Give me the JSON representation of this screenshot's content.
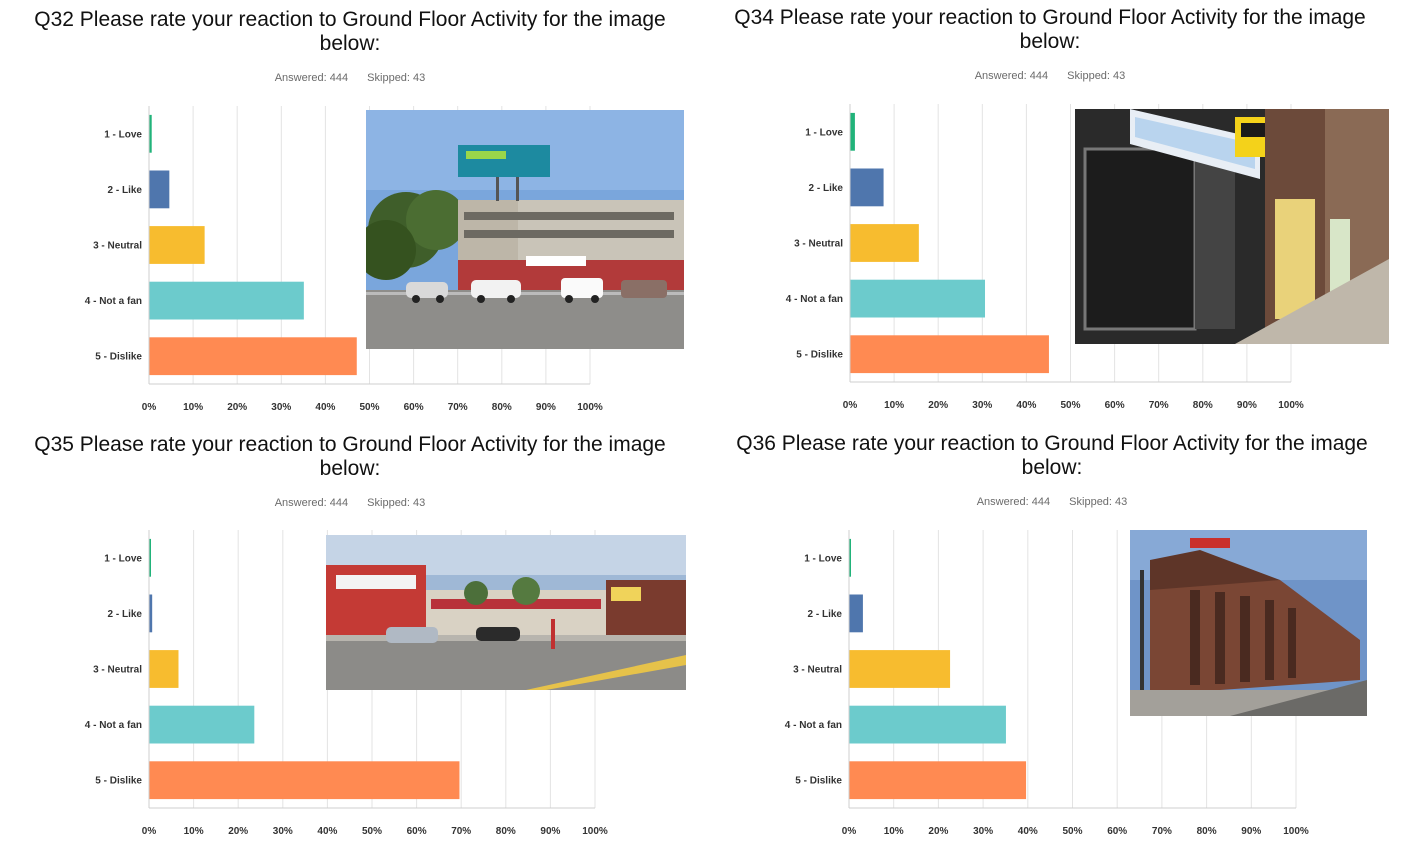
{
  "colors": [
    "#21b37a",
    "#4f76ad",
    "#f7bc2f",
    "#6ccbcc",
    "#ff8a52"
  ],
  "panels": [
    {
      "title_line1": "Q32 Please rate your reaction to Ground Floor Activity for the image",
      "title_line2": "below:",
      "answered": "Answered: 444",
      "skipped": "Skipped: 43",
      "photo_icon": "street-photo-corner-building-billboard"
    },
    {
      "title_line1": "Q34 Please rate your reaction to Ground Floor Activity for the image",
      "title_line2": "below:",
      "answered": "Answered: 444",
      "skipped": "Skipped: 43",
      "photo_icon": "street-photo-action-printing-storefront"
    },
    {
      "title_line1": "Q35 Please rate your reaction to Ground Floor Activity for the image",
      "title_line2": "below:",
      "answered": "Answered: 444",
      "skipped": "Skipped: 43",
      "photo_icon": "street-photo-strip-mall-parking"
    },
    {
      "title_line1": "Q36 Please rate your reaction to Ground Floor Activity for the image",
      "title_line2": "below:",
      "answered": "Answered: 444",
      "skipped": "Skipped: 43",
      "photo_icon": "street-photo-brick-corner-building"
    }
  ],
  "chart_data": [
    {
      "type": "bar",
      "orientation": "horizontal",
      "title": "Q32 Please rate your reaction to Ground Floor Activity for the image below:",
      "categories": [
        "1 - Love",
        "2 - Like",
        "3 - Neutral",
        "4 - Not a fan",
        "5 - Dislike"
      ],
      "values": [
        0.5,
        4.5,
        12.5,
        35,
        47
      ],
      "xticks": [
        "0%",
        "10%",
        "20%",
        "30%",
        "40%",
        "50%",
        "60%",
        "70%",
        "80%",
        "90%",
        "100%"
      ],
      "xlim": [
        0,
        100
      ],
      "grid": true
    },
    {
      "type": "bar",
      "orientation": "horizontal",
      "title": "Q34 Please rate your reaction to Ground Floor Activity for the image below:",
      "categories": [
        "1 - Love",
        "2 - Like",
        "3 - Neutral",
        "4 - Not a fan",
        "5 - Dislike"
      ],
      "values": [
        1,
        7.5,
        15.5,
        30.5,
        45
      ],
      "xticks": [
        "0%",
        "10%",
        "20%",
        "30%",
        "40%",
        "50%",
        "60%",
        "70%",
        "80%",
        "90%",
        "100%"
      ],
      "xlim": [
        0,
        100
      ],
      "grid": true
    },
    {
      "type": "bar",
      "orientation": "horizontal",
      "title": "Q35 Please rate your reaction to Ground Floor Activity for the image below:",
      "categories": [
        "1 - Love",
        "2 - Like",
        "3 - Neutral",
        "4 - Not a fan",
        "5 - Dislike"
      ],
      "values": [
        0.2,
        0.6,
        6.5,
        23.5,
        69.5
      ],
      "xticks": [
        "0%",
        "10%",
        "20%",
        "30%",
        "40%",
        "50%",
        "60%",
        "70%",
        "80%",
        "90%",
        "100%"
      ],
      "xlim": [
        0,
        100
      ],
      "grid": true
    },
    {
      "type": "bar",
      "orientation": "horizontal",
      "title": "Q36 Please rate your reaction to Ground Floor Activity for the image below:",
      "categories": [
        "1 - Love",
        "2 - Like",
        "3 - Neutral",
        "4 - Not a fan",
        "5 - Dislike"
      ],
      "values": [
        0.2,
        3,
        22.5,
        35,
        39.5
      ],
      "xticks": [
        "0%",
        "10%",
        "20%",
        "30%",
        "40%",
        "50%",
        "60%",
        "70%",
        "80%",
        "90%",
        "100%"
      ],
      "xlim": [
        0,
        100
      ],
      "grid": true
    }
  ]
}
